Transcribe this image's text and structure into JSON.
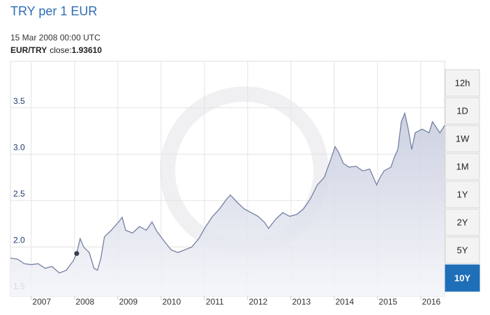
{
  "chart_data": {
    "type": "area",
    "title": "TRY per 1 EUR",
    "hover": {
      "date": "15 Mar 2008 00:00 UTC",
      "pair": "EUR/TRY",
      "label": "close:",
      "value": "1.93610"
    },
    "x": [
      2006.52,
      2006.68,
      2006.84,
      2007.0,
      2007.16,
      2007.32,
      2007.48,
      2007.65,
      2007.81,
      2007.97,
      2008.05,
      2008.13,
      2008.21,
      2008.34,
      2008.45,
      2008.53,
      2008.61,
      2008.69,
      2008.85,
      2009.02,
      2009.1,
      2009.18,
      2009.34,
      2009.5,
      2009.66,
      2009.79,
      2009.9,
      2010.06,
      2010.23,
      2010.39,
      2010.55,
      2010.71,
      2010.87,
      2011.03,
      2011.19,
      2011.35,
      2011.52,
      2011.6,
      2011.76,
      2011.92,
      2012.08,
      2012.24,
      2012.4,
      2012.48,
      2012.65,
      2012.81,
      2012.97,
      2013.13,
      2013.29,
      2013.45,
      2013.61,
      2013.77,
      2013.94,
      2014.02,
      2014.1,
      2014.21,
      2014.34,
      2014.5,
      2014.66,
      2014.82,
      2014.98,
      2015.06,
      2015.15,
      2015.31,
      2015.39,
      2015.47,
      2015.55,
      2015.63,
      2015.71,
      2015.79,
      2015.87,
      2016.03,
      2016.19,
      2016.27,
      2016.44,
      2016.55
    ],
    "series": [
      {
        "name": "EUR/TRY",
        "color": "#7480a3",
        "values": [
          1.88,
          1.87,
          1.82,
          1.81,
          1.82,
          1.77,
          1.79,
          1.72,
          1.75,
          1.85,
          1.93,
          2.09,
          2.0,
          1.94,
          1.77,
          1.75,
          1.88,
          2.11,
          2.18,
          2.27,
          2.32,
          2.18,
          2.15,
          2.22,
          2.18,
          2.27,
          2.17,
          2.07,
          1.97,
          1.94,
          1.97,
          2.0,
          2.09,
          2.22,
          2.33,
          2.41,
          2.52,
          2.56,
          2.48,
          2.41,
          2.37,
          2.33,
          2.26,
          2.2,
          2.3,
          2.37,
          2.33,
          2.35,
          2.41,
          2.52,
          2.67,
          2.75,
          2.97,
          3.08,
          3.02,
          2.9,
          2.86,
          2.87,
          2.82,
          2.84,
          2.67,
          2.75,
          2.82,
          2.86,
          2.97,
          3.05,
          3.35,
          3.44,
          3.27,
          3.05,
          3.23,
          3.27,
          3.23,
          3.35,
          3.23,
          3.31
        ]
      }
    ],
    "xlim": [
      2006.52,
      2016.55
    ],
    "xticks": [
      2007,
      2008,
      2009,
      2010,
      2011,
      2012,
      2013,
      2014,
      2015,
      2016
    ],
    "ylim": [
      1.47,
      4.0
    ],
    "yticks": [
      1.5,
      {
        "value": 2,
        "label": "2.0"
      },
      2.5,
      {
        "value": 3,
        "label": "3.0"
      },
      3.5
    ],
    "grid": true
  },
  "range_buttons": {
    "labels": [
      "12h",
      "1D",
      "1W",
      "1M",
      "1Y",
      "2Y",
      "5Y",
      "10Y"
    ],
    "active": "10Y"
  }
}
